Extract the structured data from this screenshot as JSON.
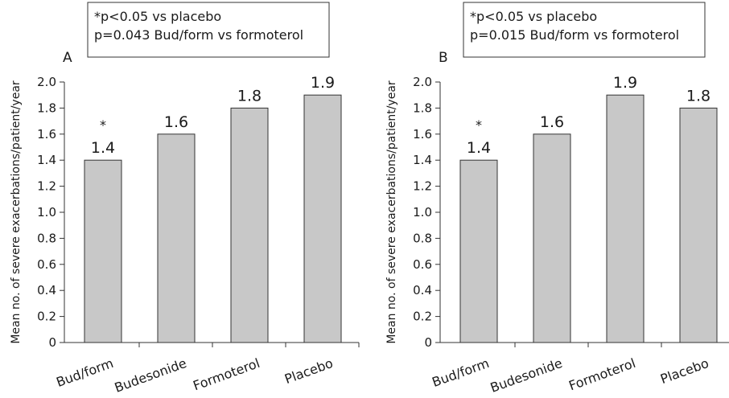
{
  "chart_data": [
    {
      "type": "bar",
      "panel_label": "A",
      "annotation_lines": [
        "*p<0.05 vs placebo",
        "p=0.043 Bud/form vs formoterol"
      ],
      "ylabel": "Mean no. of severe exacerbations/patient/year",
      "ylim": [
        0,
        2.0
      ],
      "yticks": [
        "0",
        "0.2",
        "0.4",
        "0.6",
        "0.8",
        "1.0",
        "1.2",
        "1.4",
        "1.6",
        "1.8",
        "2.0"
      ],
      "categories": [
        "Bud/form",
        "Budesonide",
        "Formoterol",
        "Placebo"
      ],
      "values": [
        1.4,
        1.6,
        1.8,
        1.9
      ],
      "value_labels": [
        "1.4",
        "1.6",
        "1.8",
        "1.9"
      ],
      "significance_marks": [
        "*",
        "",
        "",
        ""
      ],
      "bar_color": "#c8c8c8",
      "grid": false
    },
    {
      "type": "bar",
      "panel_label": "B",
      "annotation_lines": [
        "*p<0.05 vs placebo",
        "p=0.015 Bud/form vs formoterol"
      ],
      "ylabel": "Mean no. of severe exacerbations/patient/year",
      "ylim": [
        0,
        2.0
      ],
      "yticks": [
        "0",
        "0.2",
        "0.4",
        "0.6",
        "0.8",
        "1.0",
        "1.2",
        "1.4",
        "1.6",
        "1.8",
        "2.0"
      ],
      "categories": [
        "Bud/form",
        "Budesonide",
        "Formoterol",
        "Placebo"
      ],
      "values": [
        1.4,
        1.6,
        1.9,
        1.8
      ],
      "value_labels": [
        "1.4",
        "1.6",
        "1.9",
        "1.8"
      ],
      "significance_marks": [
        "*",
        "",
        "",
        ""
      ],
      "bar_color": "#c8c8c8",
      "grid": false
    }
  ]
}
